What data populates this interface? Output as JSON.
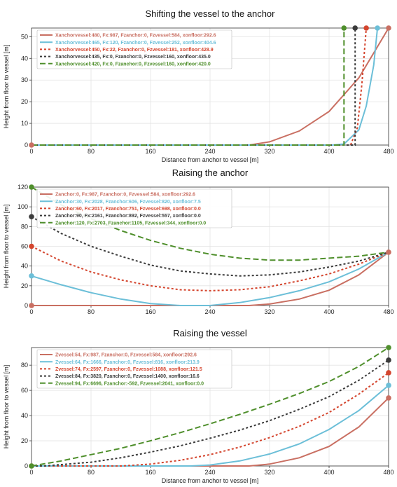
{
  "chart_data": [
    {
      "type": "line",
      "title": "Shifting the vessel to the anchor",
      "xlabel": "Distance from anchor to vessel [m]",
      "ylabel": "Height from floor to vessel [m]",
      "xlim": [
        0,
        480
      ],
      "ylim": [
        0,
        54
      ],
      "xticks": [
        0,
        80,
        160,
        240,
        320,
        400,
        480
      ],
      "xtick_labels": [
        "0",
        "80",
        "160",
        "240",
        "320",
        "400",
        "480"
      ],
      "yticks": [
        0,
        10,
        20,
        30,
        40,
        50
      ],
      "ytick_labels": [
        "0",
        "10",
        "20",
        "30",
        "40",
        "50"
      ],
      "grid": true,
      "legend_position": "top-left",
      "series": [
        {
          "name": "Xanchorvessel:480, Fx:987, Fzanchor:0, Fzvessel:584, xonfloor:292.6",
          "color": "#c96f62",
          "dash": "solid",
          "x": [
            0,
            292.6,
            320,
            360,
            400,
            440,
            480
          ],
          "y": [
            0,
            0,
            1.5,
            6.5,
            15.5,
            31,
            54
          ],
          "markers": [
            {
              "x": 0,
              "y": 0
            },
            {
              "x": 480,
              "y": 54
            }
          ]
        },
        {
          "name": "Xanchorvessel:465, Fx:120, Fzanchor:0, Fzvessel:252, xonfloor:404.6",
          "color": "#6cbfd8",
          "dash": "solid",
          "x": [
            0,
            404.6,
            420,
            440,
            450,
            460,
            465
          ],
          "y": [
            0,
            0,
            0.5,
            7,
            18,
            37,
            54
          ],
          "markers": [
            {
              "x": 465,
              "y": 54
            }
          ]
        },
        {
          "name": "Xanchorvessel:450, Fx:22, Fzanchor:0, Fzvessel:181, xonfloor:428.9",
          "color": "#d4452e",
          "dash": "short",
          "x": [
            0,
            428.9,
            438,
            444,
            450
          ],
          "y": [
            0,
            0,
            8,
            28,
            54
          ],
          "markers": [
            {
              "x": 450,
              "y": 54
            }
          ]
        },
        {
          "name": "Xanchorvessel:435, Fx:0, Fzanchor:0, Fzvessel:160, xonfloor:435.0",
          "color": "#3b3b3b",
          "dash": "short",
          "x": [
            0,
            435,
            435
          ],
          "y": [
            0,
            0,
            54
          ],
          "markers": [
            {
              "x": 435,
              "y": 54
            }
          ]
        },
        {
          "name": "Xanchorvessel:420, Fx:0, Fzanchor:0, Fzvessel:160, xonfloor:420.0",
          "color": "#4f8f2c",
          "dash": "long",
          "x": [
            0,
            420,
            420
          ],
          "y": [
            0,
            0,
            54
          ],
          "markers": [
            {
              "x": 420,
              "y": 54
            }
          ]
        }
      ]
    },
    {
      "type": "line",
      "title": "Raising the anchor",
      "xlabel": "",
      "ylabel": "Height from floor to vessel [m]",
      "xlim": [
        0,
        480
      ],
      "ylim": [
        0,
        120
      ],
      "xticks": [
        0,
        80,
        160,
        240,
        320,
        400,
        480
      ],
      "xtick_labels": [
        "0",
        "80",
        "160",
        "240",
        "320",
        "400",
        "480"
      ],
      "yticks": [
        0,
        20,
        40,
        60,
        80,
        100,
        120
      ],
      "ytick_labels": [
        "0",
        "20",
        "40",
        "60",
        "80",
        "100",
        "120"
      ],
      "grid": true,
      "legend_position": "top-left",
      "series": [
        {
          "name": "Zanchor:0, Fx:987, Fzanchor:0, Fzvessel:584, xonfloor:292.6",
          "color": "#c96f62",
          "dash": "solid",
          "x": [
            0,
            292.6,
            320,
            360,
            400,
            440,
            480
          ],
          "y": [
            0,
            0,
            1.5,
            6.5,
            15.5,
            31,
            54
          ],
          "markers": [
            {
              "x": 0,
              "y": 0
            },
            {
              "x": 480,
              "y": 54
            }
          ]
        },
        {
          "name": "Zanchor:30, Fx:2028, Fzanchor:606, Fzvessel:820, xonfloor:7.5",
          "color": "#6cbfd8",
          "dash": "solid",
          "x": [
            0,
            40,
            80,
            120,
            160,
            200,
            240,
            280,
            320,
            360,
            400,
            440,
            480
          ],
          "y": [
            30,
            21,
            13,
            6.5,
            2,
            0,
            0,
            3,
            8,
            15,
            24,
            37,
            54
          ],
          "markers": [
            {
              "x": 0,
              "y": 30
            }
          ]
        },
        {
          "name": "Zanchor:60, Fx:2017, Fzanchor:751, Fzvessel:698, xonfloor:0.0",
          "color": "#d4452e",
          "dash": "short",
          "x": [
            0,
            40,
            80,
            120,
            160,
            200,
            240,
            280,
            320,
            360,
            400,
            440,
            480
          ],
          "y": [
            60,
            45,
            34,
            26,
            20,
            16,
            15,
            16,
            19,
            25,
            32,
            42,
            54
          ],
          "markers": [
            {
              "x": 0,
              "y": 60
            }
          ]
        },
        {
          "name": "Zanchor:90, Fx:2161, Fzanchor:892, Fzvessel:557, xonfloor:0.0",
          "color": "#3b3b3b",
          "dash": "short",
          "x": [
            0,
            40,
            80,
            120,
            160,
            200,
            240,
            280,
            320,
            360,
            400,
            440,
            480
          ],
          "y": [
            90,
            73,
            60,
            50,
            41,
            35,
            32,
            30,
            31,
            34,
            39,
            45,
            54
          ],
          "markers": [
            {
              "x": 0,
              "y": 90
            }
          ]
        },
        {
          "name": "Zanchor:120, Fx:2703, Fzanchor:1105, Fzvessel:344, xonfloor:0.0",
          "color": "#4f8f2c",
          "dash": "long",
          "x": [
            0,
            40,
            80,
            120,
            160,
            200,
            240,
            280,
            320,
            360,
            400,
            440,
            480
          ],
          "y": [
            120,
            102,
            88,
            76,
            66,
            58,
            52,
            48,
            46,
            46,
            48,
            50,
            54
          ],
          "markers": [
            {
              "x": 0,
              "y": 120
            }
          ]
        }
      ]
    },
    {
      "type": "line",
      "title": "Raising the vessel",
      "xlabel": "Distance from anchor to vessel [m]",
      "ylabel": "Height from floor to vessel [m]",
      "xlim": [
        0,
        480
      ],
      "ylim": [
        0,
        94
      ],
      "xticks": [
        0,
        80,
        160,
        240,
        320,
        400,
        480
      ],
      "xtick_labels": [
        "0",
        "80",
        "160",
        "240",
        "320",
        "400",
        "480"
      ],
      "yticks": [
        0,
        20,
        40,
        60,
        80
      ],
      "ytick_labels": [
        "0",
        "20",
        "40",
        "60",
        "80"
      ],
      "grid": true,
      "legend_position": "top-left",
      "series": [
        {
          "name": "Zvessel:54, Fx:987, Fzanchor:0, Fzvessel:584, xonfloor:292.6",
          "color": "#c96f62",
          "dash": "solid",
          "x": [
            0,
            292.6,
            320,
            360,
            400,
            440,
            480
          ],
          "y": [
            0,
            0,
            1.5,
            6.5,
            15.5,
            31,
            54
          ],
          "markers": [
            {
              "x": 0,
              "y": 0
            },
            {
              "x": 480,
              "y": 54
            }
          ]
        },
        {
          "name": "Zvessel:64, Fx:1666, Fzanchor:0, Fzvessel:816, xonfloor:213.9",
          "color": "#6cbfd8",
          "dash": "solid",
          "x": [
            0,
            213.9,
            240,
            280,
            320,
            360,
            400,
            440,
            480
          ],
          "y": [
            0,
            0,
            0.8,
            4,
            9.5,
            17.5,
            29,
            44,
            64
          ],
          "markers": [
            {
              "x": 480,
              "y": 64
            }
          ]
        },
        {
          "name": "Zvessel:74, Fx:2597, Fzanchor:0, Fzvessel:1088, xonfloor:121.5",
          "color": "#d4452e",
          "dash": "short",
          "x": [
            0,
            121.5,
            160,
            200,
            240,
            280,
            320,
            360,
            400,
            440,
            480
          ],
          "y": [
            0,
            0,
            1.5,
            4.5,
            9,
            15,
            22.5,
            31.5,
            42.5,
            57,
            74
          ],
          "markers": [
            {
              "x": 480,
              "y": 74
            }
          ]
        },
        {
          "name": "Zvessel:84, Fx:3820, Fzanchor:0, Fzvessel:1400, xonfloor:16.6",
          "color": "#3b3b3b",
          "dash": "short",
          "x": [
            0,
            16.6,
            80,
            120,
            160,
            200,
            240,
            280,
            320,
            360,
            400,
            440,
            480
          ],
          "y": [
            0,
            0,
            3,
            6.5,
            11,
            16,
            22,
            28.5,
            36,
            45,
            55,
            68,
            84
          ],
          "markers": [
            {
              "x": 480,
              "y": 84
            }
          ]
        },
        {
          "name": "Zvessel:94, Fx:6696, Fzanchor:-592, Fzvessel:2041, xonfloor:0.0",
          "color": "#4f8f2c",
          "dash": "long",
          "x": [
            0,
            40,
            80,
            120,
            160,
            200,
            240,
            280,
            320,
            360,
            400,
            440,
            480
          ],
          "y": [
            0,
            4,
            9,
            14,
            20,
            26.5,
            33.5,
            41,
            49,
            57.5,
            67,
            79,
            94
          ],
          "markers": [
            {
              "x": 0,
              "y": 0
            },
            {
              "x": 480,
              "y": 94
            }
          ]
        }
      ]
    }
  ]
}
